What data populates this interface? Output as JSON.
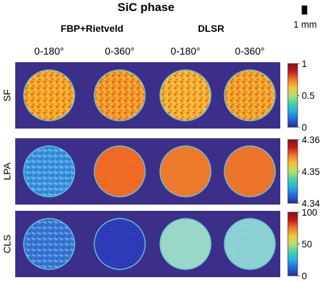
{
  "title": "SiC phase",
  "scale_bar": {
    "label": "1 mm"
  },
  "groups": [
    {
      "label": "FBP+Rietveld"
    },
    {
      "label": "DLSR"
    }
  ],
  "columns": [
    "0-180°",
    "0-360°",
    "0-180°",
    "0-360°"
  ],
  "colors": {
    "background_panel": "#3b2f8a",
    "colormap": [
      "#2a2a9c",
      "#2468d8",
      "#22b0e0",
      "#46d2b0",
      "#b8e06c",
      "#f2c63a",
      "#f07a22",
      "#c8181e",
      "#8a1010"
    ]
  },
  "rows": [
    {
      "label": "SF",
      "colorbar": {
        "ticks": [
          "1",
          "0.5",
          "0"
        ],
        "range": [
          0,
          1
        ]
      },
      "discs": [
        {
          "fill": "#f2a828",
          "texture": "speckle-warm"
        },
        {
          "fill": "#f09a26",
          "texture": "speckle-warm"
        },
        {
          "fill": "#f2b232",
          "texture": "speckle-warm"
        },
        {
          "fill": "#f0a42a",
          "texture": "speckle-warm"
        }
      ]
    },
    {
      "label": "LPA",
      "colorbar": {
        "ticks": [
          "4.36",
          "4.35",
          "4.34"
        ],
        "range": [
          4.335,
          4.365
        ]
      },
      "discs": [
        {
          "fill": "#3c96e0",
          "texture": "speckle-cool"
        },
        {
          "fill": "#f06a24",
          "texture": "fine"
        },
        {
          "fill": "#ee7a2a",
          "texture": "fine"
        },
        {
          "fill": "#ee7428",
          "texture": "fine"
        }
      ]
    },
    {
      "label": "CLS",
      "colorbar": {
        "ticks": [
          "100",
          "50",
          "0"
        ],
        "range": [
          0,
          100
        ]
      },
      "discs": [
        {
          "fill": "#3a78d4",
          "texture": "speckle-cool"
        },
        {
          "fill": "#2c3ab8",
          "texture": "fine"
        },
        {
          "fill": "#9ad8c8",
          "texture": "fine"
        },
        {
          "fill": "#8cd2d2",
          "texture": "fine"
        }
      ]
    }
  ]
}
